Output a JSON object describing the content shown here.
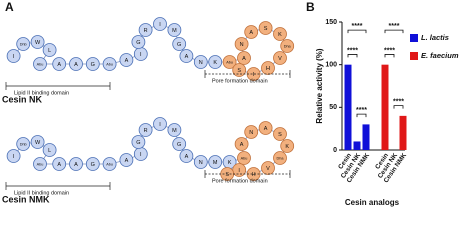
{
  "panel_a": {
    "label": "A",
    "lipid_label": "Lipid II binding domain",
    "pore_label": "Pore formation domain",
    "constructs": [
      {
        "name": "Cesin NK",
        "residues": [
          "I",
          "Dhb",
          "W",
          "L",
          "Abu",
          "A",
          "A",
          "G",
          "Abu",
          "A",
          "I",
          "G",
          "R",
          "I",
          "M",
          "G",
          "A",
          "N",
          "K"
        ],
        "pore_residues": [
          "Abu",
          "A",
          "N",
          "A",
          "S",
          "K",
          "Dha",
          "V",
          "H",
          "I",
          "S"
        ]
      },
      {
        "name": "Cesin NMK",
        "residues": [
          "I",
          "Dhb",
          "W",
          "L",
          "Abu",
          "A",
          "A",
          "G",
          "Abu",
          "A",
          "I",
          "G",
          "R",
          "I",
          "M",
          "G",
          "A",
          "N",
          "M",
          "K"
        ],
        "pore_residues": [
          "Abu",
          "A",
          "N",
          "A",
          "S",
          "K",
          "Dha",
          "V",
          "H",
          "I",
          "S"
        ]
      }
    ]
  },
  "chart_data": {
    "type": "bar",
    "panel_label": "B",
    "y_label": "Relative activity (%)",
    "x_label": "Cesin analogs",
    "categories": [
      "Cesin",
      "Cesin NK",
      "Cesin NMK",
      "Cesin",
      "Cesin NK",
      "Cesin NMK"
    ],
    "series": [
      {
        "name": "L. lactis",
        "color": "#1010d8",
        "values": [
          100,
          10,
          30,
          null,
          null,
          null
        ]
      },
      {
        "name": "E. faecium",
        "color": "#e01818",
        "values": [
          null,
          null,
          null,
          100,
          0,
          40
        ]
      }
    ],
    "annotations": [
      {
        "text": "****",
        "from": 0,
        "to": 1
      },
      {
        "text": "****",
        "from": 1,
        "to": 2
      },
      {
        "text": "****",
        "from": 0,
        "to": 2
      },
      {
        "text": "****",
        "from": 3,
        "to": 4
      },
      {
        "text": "****",
        "from": 4,
        "to": 5
      },
      {
        "text": "****",
        "from": 3,
        "to": 5
      }
    ],
    "ylim": [
      0,
      150
    ],
    "yticks": [
      0,
      50,
      100,
      150
    ],
    "legend": "right"
  }
}
